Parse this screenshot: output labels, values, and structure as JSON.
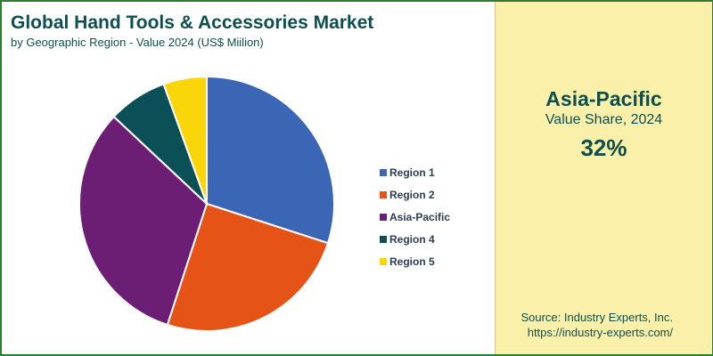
{
  "header": {
    "title": "Global Hand Tools & Accessories Market",
    "subtitle": "by Geographic Region - Value 2024 (US$ Miilion)"
  },
  "highlight": {
    "region": "Asia-Pacific",
    "label": "Value Share, 2024",
    "value": "32%"
  },
  "source": {
    "line1": "Source: Industry Experts, Inc.",
    "line2": "https://industry-experts.com/"
  },
  "colors": {
    "title": "#0d4f4f",
    "panel": "#fbf0aa",
    "border": "#2e7d32"
  },
  "chart_data": {
    "type": "pie",
    "title": "Global Hand Tools & Accessories Market",
    "subtitle": "by Geographic Region - Value 2024 (US$ Miilion)",
    "legend_position": "right",
    "categories": [
      "Region 1",
      "Region 2",
      "Asia-Pacific",
      "Region 4",
      "Region 5"
    ],
    "values": [
      30,
      25,
      32,
      7.5,
      5.5
    ],
    "colors": [
      "#3a66b5",
      "#e55416",
      "#6b1e74",
      "#0b4f57",
      "#fad50a"
    ]
  }
}
